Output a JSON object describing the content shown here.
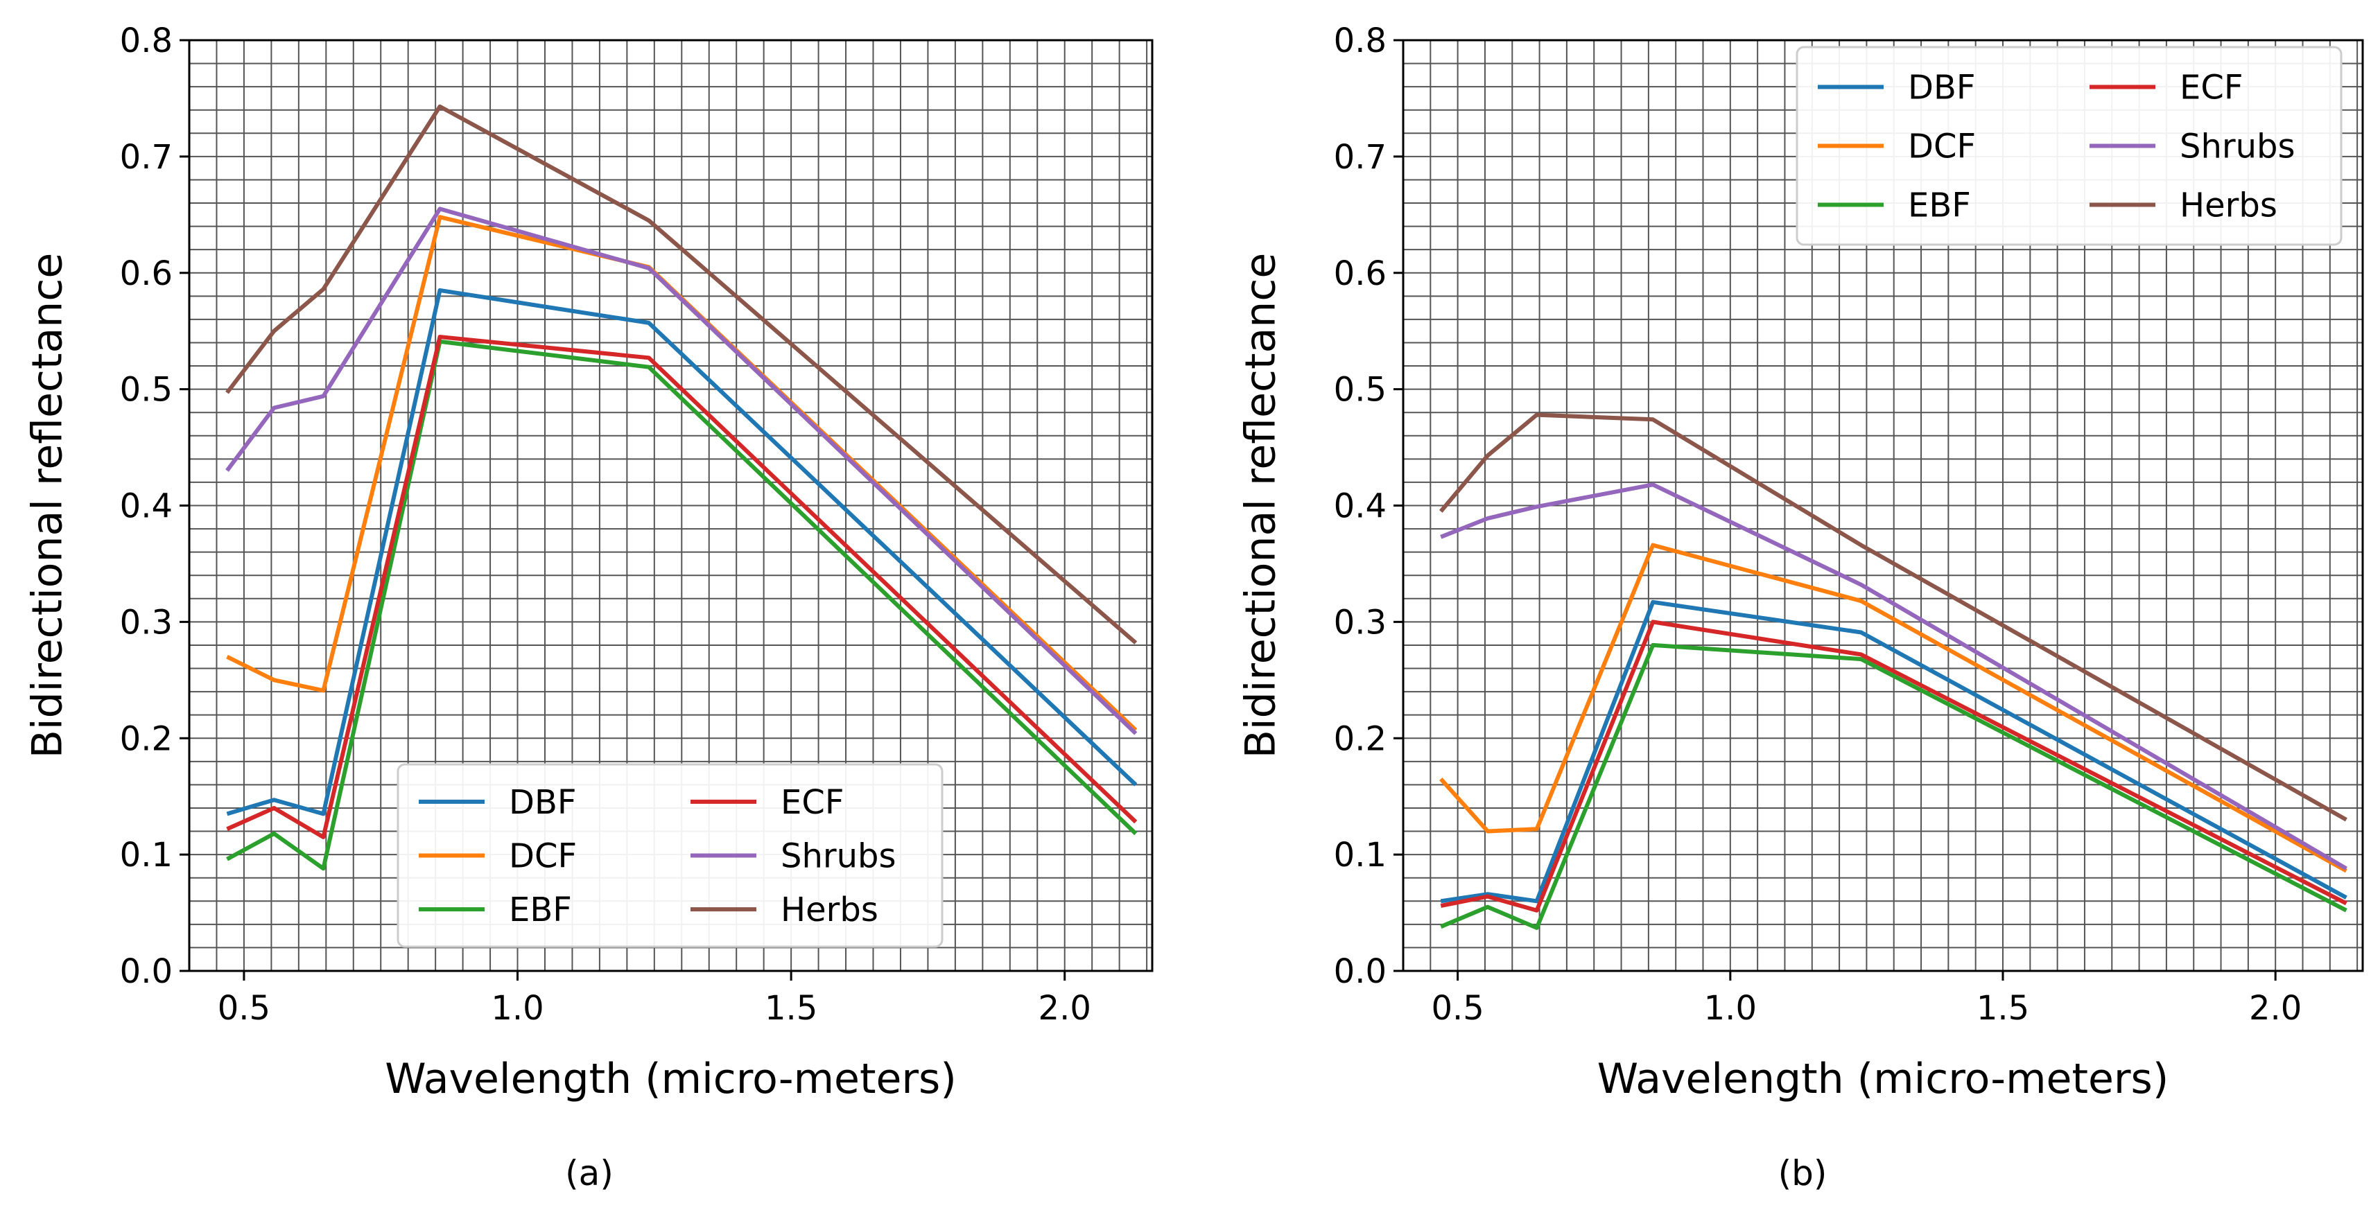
{
  "figure": {
    "panel_labels": [
      "(a)",
      "(b)"
    ]
  },
  "colors": {
    "DBF": "#1f77b4",
    "DCF": "#ff7f0e",
    "EBF": "#2ca02c",
    "ECF": "#d62728",
    "Shrubs": "#9467bd",
    "Herbs": "#8c564b"
  },
  "chart_data": [
    {
      "type": "line",
      "panel": "(a)",
      "title": "",
      "xlabel": "Wavelength (micro-meters)",
      "ylabel": "Bidirectional reflectance",
      "xlim": [
        0.4,
        2.16
      ],
      "ylim": [
        0.0,
        0.8
      ],
      "xticks": [
        "0.5",
        "1.0",
        "1.5",
        "2.0"
      ],
      "yticks": [
        "0.0",
        "0.1",
        "0.2",
        "0.3",
        "0.4",
        "0.5",
        "0.6",
        "0.7",
        "0.8"
      ],
      "grid": true,
      "legend": {
        "placement": "bottom-center",
        "columns": 2
      },
      "x": [
        0.469,
        0.555,
        0.645,
        0.858,
        1.24,
        2.13
      ],
      "series": [
        {
          "name": "DBF",
          "values": [
            0.135,
            0.147,
            0.135,
            0.585,
            0.557,
            0.16
          ]
        },
        {
          "name": "DCF",
          "values": [
            0.27,
            0.25,
            0.241,
            0.648,
            0.605,
            0.207
          ]
        },
        {
          "name": "EBF",
          "values": [
            0.096,
            0.118,
            0.088,
            0.541,
            0.519,
            0.118
          ]
        },
        {
          "name": "ECF",
          "values": [
            0.122,
            0.14,
            0.115,
            0.545,
            0.527,
            0.128
          ]
        },
        {
          "name": "Shrubs",
          "values": [
            0.43,
            0.484,
            0.494,
            0.655,
            0.604,
            0.204
          ]
        },
        {
          "name": "Herbs",
          "values": [
            0.497,
            0.55,
            0.586,
            0.743,
            0.645,
            0.282
          ]
        }
      ]
    },
    {
      "type": "line",
      "panel": "(b)",
      "title": "",
      "xlabel": "Wavelength (micro-meters)",
      "ylabel": "Bidirectional reflectance",
      "xlim": [
        0.4,
        2.16
      ],
      "ylim": [
        0.0,
        0.8
      ],
      "xticks": [
        "0.5",
        "1.0",
        "1.5",
        "2.0"
      ],
      "yticks": [
        "0.0",
        "0.1",
        "0.2",
        "0.3",
        "0.4",
        "0.5",
        "0.6",
        "0.7",
        "0.8"
      ],
      "grid": true,
      "legend": {
        "placement": "top-right",
        "columns": 2
      },
      "x": [
        0.469,
        0.555,
        0.645,
        0.858,
        1.24,
        2.13
      ],
      "series": [
        {
          "name": "DBF",
          "values": [
            0.06,
            0.066,
            0.06,
            0.317,
            0.291,
            0.063
          ]
        },
        {
          "name": "DCF",
          "values": [
            0.165,
            0.12,
            0.122,
            0.366,
            0.318,
            0.086
          ]
        },
        {
          "name": "EBF",
          "values": [
            0.038,
            0.055,
            0.037,
            0.28,
            0.268,
            0.052
          ]
        },
        {
          "name": "ECF",
          "values": [
            0.056,
            0.064,
            0.052,
            0.3,
            0.272,
            0.058
          ]
        },
        {
          "name": "Shrubs",
          "values": [
            0.373,
            0.389,
            0.399,
            0.418,
            0.332,
            0.088
          ]
        },
        {
          "name": "Herbs",
          "values": [
            0.395,
            0.443,
            0.478,
            0.474,
            0.366,
            0.13
          ]
        }
      ]
    }
  ]
}
